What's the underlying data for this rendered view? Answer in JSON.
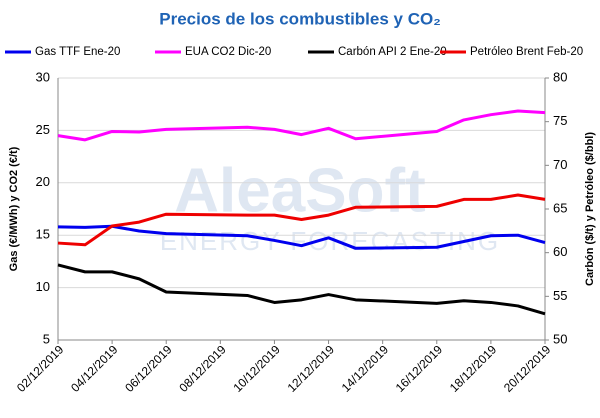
{
  "chart_data": {
    "type": "line",
    "title": "Precios de los combustibles y CO₂",
    "watermark": [
      "AleaSoft",
      "ENERGY FORECASTING"
    ],
    "ylabel": "Gas (€/MWh) y CO2 (€/t)",
    "y2label": "Carbón ($/t) y Petróleo ($/bbl)",
    "x": [
      "02/12/2019",
      "03/12/2019",
      "04/12/2019",
      "05/12/2019",
      "06/12/2019",
      "09/12/2019",
      "10/12/2019",
      "11/12/2019",
      "12/12/2019",
      "13/12/2019",
      "16/12/2019",
      "17/12/2019",
      "18/12/2019",
      "19/12/2019",
      "20/12/2019"
    ],
    "xlim": [
      "02/12/2019",
      "20/12/2019"
    ],
    "xticks": [
      "02/12/2019",
      "04/12/2019",
      "06/12/2019",
      "08/12/2019",
      "10/12/2019",
      "12/12/2019",
      "14/12/2019",
      "16/12/2019",
      "18/12/2019",
      "20/12/2019"
    ],
    "ylim": [
      5,
      30
    ],
    "yticks": [
      5,
      10,
      15,
      20,
      25,
      30
    ],
    "y2lim": [
      50,
      80
    ],
    "y2ticks": [
      50,
      55,
      60,
      65,
      70,
      75,
      80
    ],
    "grid": true,
    "legend": "top",
    "series": [
      {
        "name": "Gas TTF Ene-20",
        "color": "#0000ee",
        "values": [
          15.8,
          15.75,
          15.85,
          15.4,
          15.15,
          14.95,
          14.5,
          14.0,
          14.75,
          13.75,
          13.85,
          14.4,
          14.95,
          15.0,
          14.3
        ]
      },
      {
        "name": "EUA CO2 Dic-20",
        "color": "#ff00ff",
        "values": [
          24.5,
          24.1,
          24.9,
          24.85,
          25.1,
          25.3,
          25.1,
          24.6,
          25.2,
          24.2,
          24.9,
          26.0,
          26.5,
          26.85,
          26.7
        ]
      },
      {
        "name": "Carbón API 2 Ene-20",
        "color": "#000000",
        "axis": "y2",
        "values": [
          58.6,
          57.8,
          57.8,
          57.0,
          55.5,
          55.1,
          54.3,
          54.6,
          55.2,
          54.6,
          54.2,
          54.5,
          54.3,
          53.9,
          53.0
        ]
      },
      {
        "name": "Petróleo Brent Feb-20",
        "color": "#ee0000",
        "axis": "y2",
        "values": [
          61.1,
          60.9,
          63.05,
          63.5,
          64.4,
          64.3,
          64.3,
          63.8,
          64.3,
          65.2,
          65.3,
          66.1,
          66.1,
          66.6,
          66.1
        ]
      }
    ]
  }
}
